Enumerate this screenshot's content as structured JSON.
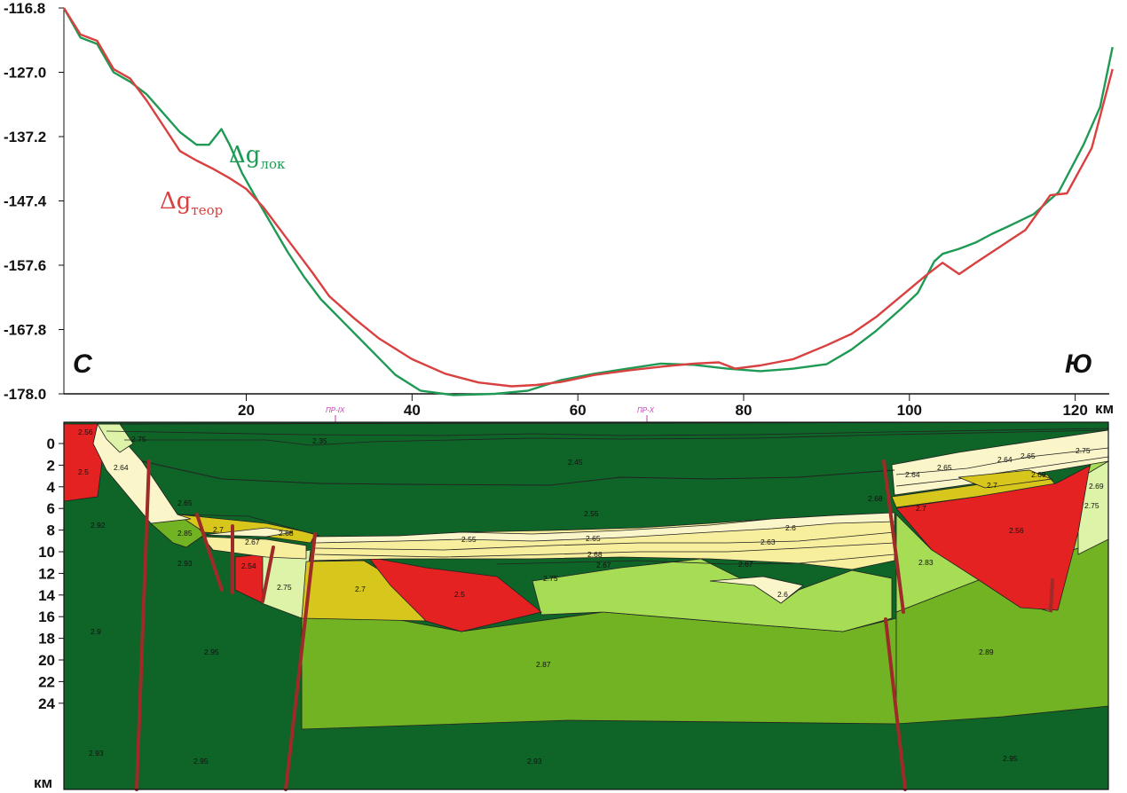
{
  "chart_data": {
    "type": "line",
    "y_ticks": [
      "-116.8",
      "-127.0",
      "-137.2",
      "-147.4",
      "-157.6",
      "-167.8",
      "-178.0"
    ],
    "ylim": [
      -178.0,
      -116.8
    ],
    "x_ticks": [
      "20",
      "40",
      "60",
      "80",
      "100",
      "120"
    ],
    "x_unit": "км",
    "xlim": [
      -2,
      124
    ],
    "corner_left": "С",
    "corner_right": "Ю",
    "series": [
      {
        "name_main": "Δg",
        "name_sub": "лок",
        "color": "#1f9a55",
        "points": [
          [
            -2,
            -116.8
          ],
          [
            0,
            -121.5
          ],
          [
            2,
            -122.5
          ],
          [
            4,
            -127.0
          ],
          [
            6,
            -128.5
          ],
          [
            8,
            -130.5
          ],
          [
            10,
            -133.5
          ],
          [
            12,
            -136.5
          ],
          [
            14,
            -138.5
          ],
          [
            15.5,
            -138.5
          ],
          [
            17,
            -136.0
          ],
          [
            18,
            -138.5
          ],
          [
            19.5,
            -143.0
          ],
          [
            21,
            -146.5
          ],
          [
            23,
            -151.0
          ],
          [
            25,
            -155.5
          ],
          [
            27,
            -159.5
          ],
          [
            29,
            -163.0
          ],
          [
            32,
            -167.0
          ],
          [
            35,
            -171.0
          ],
          [
            38,
            -175.0
          ],
          [
            41,
            -177.5
          ],
          [
            45,
            -178.2
          ],
          [
            50,
            -178.0
          ],
          [
            54,
            -177.5
          ],
          [
            58,
            -175.8
          ],
          [
            62,
            -174.8
          ],
          [
            66,
            -174.0
          ],
          [
            70,
            -173.2
          ],
          [
            74,
            -173.4
          ],
          [
            78,
            -174.0
          ],
          [
            82,
            -174.4
          ],
          [
            86,
            -174.0
          ],
          [
            90,
            -173.3
          ],
          [
            93,
            -171.0
          ],
          [
            96,
            -168.0
          ],
          [
            99,
            -164.5
          ],
          [
            101,
            -162.0
          ],
          [
            103,
            -157.0
          ],
          [
            104,
            -155.8
          ],
          [
            106,
            -155.0
          ],
          [
            108,
            -154.0
          ],
          [
            110,
            -152.6
          ],
          [
            112,
            -151.4
          ],
          [
            115,
            -149.5
          ],
          [
            118,
            -146.0
          ],
          [
            121,
            -138.5
          ],
          [
            123,
            -132.5
          ],
          [
            124.5,
            -123.0
          ]
        ]
      },
      {
        "name_main": "Δg",
        "name_sub": "теор",
        "color": "#d94040",
        "points": [
          [
            -2,
            -116.8
          ],
          [
            0,
            -121.0
          ],
          [
            2,
            -122.0
          ],
          [
            4,
            -126.5
          ],
          [
            6,
            -128.0
          ],
          [
            8,
            -131.5
          ],
          [
            10,
            -135.5
          ],
          [
            12,
            -139.5
          ],
          [
            14,
            -141.0
          ],
          [
            16,
            -142.3
          ],
          [
            18,
            -143.8
          ],
          [
            20,
            -145.5
          ],
          [
            22,
            -148.3
          ],
          [
            24,
            -151.8
          ],
          [
            26,
            -155.3
          ],
          [
            28,
            -158.8
          ],
          [
            30,
            -162.5
          ],
          [
            33,
            -166.0
          ],
          [
            36,
            -169.2
          ],
          [
            40,
            -172.5
          ],
          [
            44,
            -174.8
          ],
          [
            48,
            -176.2
          ],
          [
            52,
            -176.8
          ],
          [
            55,
            -176.6
          ],
          [
            58,
            -176.1
          ],
          [
            62,
            -175.0
          ],
          [
            66,
            -174.3
          ],
          [
            70,
            -173.7
          ],
          [
            74,
            -173.2
          ],
          [
            77,
            -173.0
          ],
          [
            79,
            -174.0
          ],
          [
            82,
            -173.5
          ],
          [
            86,
            -172.5
          ],
          [
            90,
            -170.3
          ],
          [
            93,
            -168.5
          ],
          [
            96,
            -165.8
          ],
          [
            99,
            -162.5
          ],
          [
            102,
            -159.2
          ],
          [
            104,
            -157.2
          ],
          [
            106,
            -159.0
          ],
          [
            108,
            -157.2
          ],
          [
            111,
            -154.6
          ],
          [
            114,
            -152.0
          ],
          [
            117,
            -146.5
          ],
          [
            119,
            -146.2
          ],
          [
            122,
            -139.0
          ],
          [
            124.5,
            -126.5
          ]
        ]
      }
    ]
  },
  "section": {
    "depth_ticks": [
      "0",
      "2",
      "4",
      "6",
      "8",
      "10",
      "12",
      "14",
      "16",
      "18",
      "20",
      "22",
      "24"
    ],
    "depth_unit": "км",
    "profile_marks": [
      "ПР-IX",
      "ПР-X"
    ],
    "densities": [
      "2.56",
      "2.75",
      "2.35",
      "2.45",
      "2.5",
      "2.64",
      "2.65",
      "2.55",
      "2.92",
      "2.85",
      "2.7",
      "2.68",
      "2.93",
      "2.67",
      "2.54",
      "2.75",
      "2.7",
      "2.55",
      "2.65",
      "2.68",
      "2.67",
      "2.5",
      "2.75",
      "2.6",
      "2.63",
      "2.67",
      "2.6",
      "2.9",
      "2.95",
      "2.87",
      "2.93",
      "2.95",
      "2.64",
      "2.65",
      "2.64",
      "2.65",
      "2.75",
      "2.69",
      "2.7",
      "2.68",
      "2.7",
      "2.69",
      "2.56",
      "2.75",
      "2.83",
      "2.89",
      "2.93",
      "2.95"
    ]
  },
  "colors": {
    "green_dark": "#0f6428",
    "green_mid": "#72b323",
    "green_light": "#a6dd55",
    "green_pale": "#ddf3a8",
    "mustard": "#d7c61c",
    "yellow": "#f7ee9e",
    "cream": "#fbf6ca",
    "red": "#e52222",
    "fault": "#9e2b28"
  }
}
